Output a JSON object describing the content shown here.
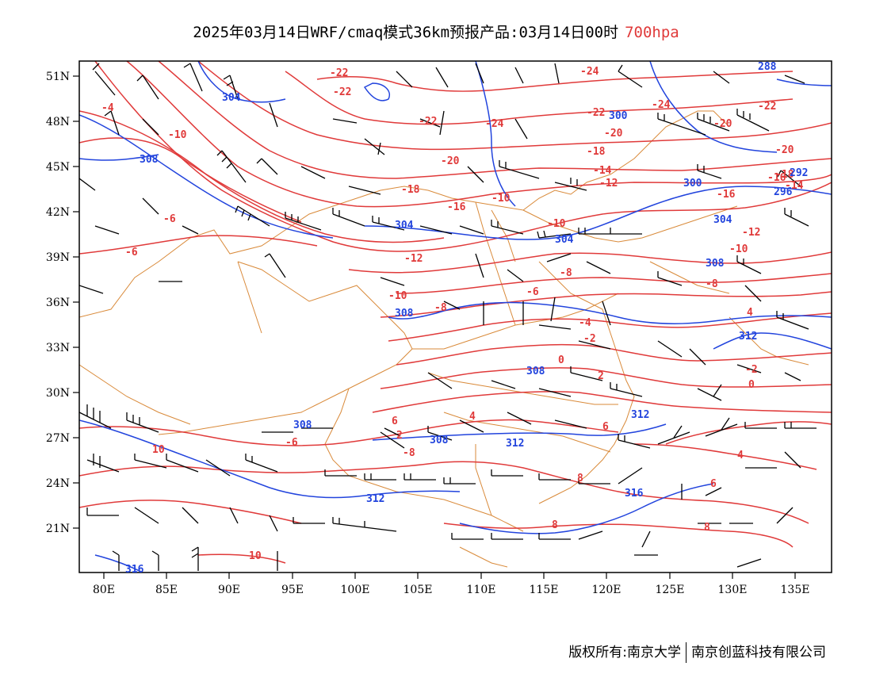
{
  "title": {
    "prefix": "2025年03月14日WRF/cmaq模式36km预报产品:03月14日00时",
    "level": "700hpa",
    "level_color": "#e03a3a"
  },
  "colors": {
    "temperature_contour": "#e03a3a",
    "height_contour": "#2244dd",
    "boundary": "#d98a3a",
    "wind_barb": "#000000"
  },
  "axes": {
    "lon_ticks": [
      "80E",
      "85E",
      "90E",
      "95E",
      "100E",
      "105E",
      "110E",
      "115E",
      "120E",
      "125E",
      "130E",
      "135E"
    ],
    "lat_ticks": [
      "51N",
      "48N",
      "45N",
      "42N",
      "39N",
      "36N",
      "33N",
      "30N",
      "27N",
      "24N",
      "21N"
    ]
  },
  "temperature_labels": [
    "-22",
    "-24",
    "-22",
    "-24",
    "-22",
    "-22",
    "-24",
    "-20",
    "-18",
    "-20",
    "-20",
    "-16",
    "-14",
    "-10",
    "-18",
    "-12",
    "-16",
    "-14",
    "-10",
    "-12",
    "-8",
    "-6",
    "-6",
    "-10",
    "-8",
    "-8",
    "-4",
    "-2",
    "0",
    "2",
    "4",
    "6",
    "4",
    "2",
    "0",
    "-2",
    "-4",
    "-6",
    "-8",
    "-10",
    "-12",
    "-16",
    "-18",
    "-20",
    "-22",
    "8",
    "8",
    "10",
    "6",
    "4",
    "6",
    "8",
    "10",
    "-6",
    "-10"
  ],
  "height_labels": [
    "304",
    "308",
    "304",
    "300",
    "308",
    "304",
    "308",
    "308",
    "312",
    "312",
    "308",
    "312",
    "316",
    "316",
    "312",
    "300",
    "288",
    "292",
    "296",
    "304",
    "308"
  ],
  "footer": {
    "left": "版权所有:南京大学",
    "right": "南京创蓝科技有限公司"
  }
}
